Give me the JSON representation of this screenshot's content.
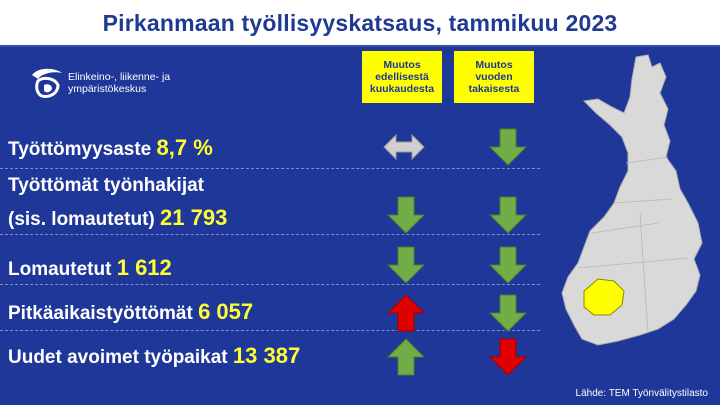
{
  "title": "Pirkanmaan työllisyyskatsaus, tammikuu 2023",
  "logo": {
    "line1": "Elinkeino-, liikenne- ja",
    "line2": "ympäristökeskus"
  },
  "headers": {
    "col1": "Muutos edellisestä kuukaudesta",
    "col2": "Muutos vuoden takaisesta"
  },
  "rows": [
    {
      "label": "Työttömyysaste",
      "value": "8,7 %",
      "col1": "unchanged",
      "col2": "down-good"
    },
    {
      "label_line1": "Työttömät työnhakijat",
      "label": "(sis. lomautetut)",
      "value": "21 793",
      "col1": "down-good",
      "col2": "down-good"
    },
    {
      "label": "Lomautetut",
      "value": "1 612",
      "col1": "down-good",
      "col2": "down-good"
    },
    {
      "label": "Pitkäaikaistyöttömät",
      "value": "6 057",
      "col1": "up-bad",
      "col2": "down-good"
    },
    {
      "label": "Uudet avoimet työpaikat",
      "value": "13 387",
      "col1": "up-good",
      "col2": "down-bad"
    }
  ],
  "colors": {
    "background": "#1e3799",
    "title": "#1f3a93",
    "header": "#ffff00",
    "value": "#ffff33",
    "arrow_green": "#70ad47",
    "arrow_red": "#e00000",
    "arrow_gray": "#d0d0d0",
    "map_fill": "#d9d9d9",
    "map_highlight": "#ffff00"
  },
  "source": "Lähde: TEM Työnvälitystilasto"
}
